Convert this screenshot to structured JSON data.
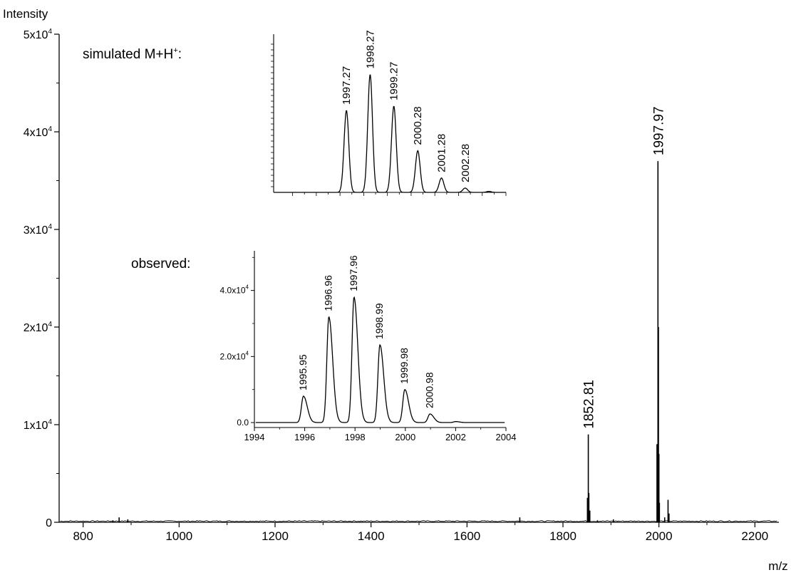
{
  "chart_data": [
    {
      "id": "main",
      "type": "line",
      "ylabel": "Intensity",
      "xlabel": "m/z",
      "xlim": [
        750,
        2250
      ],
      "ylim": [
        0,
        50000
      ],
      "x_ticks": [
        800,
        1000,
        1200,
        1400,
        1600,
        1800,
        2000,
        2200
      ],
      "x_tick_labels": [
        "800",
        "1000",
        "1200",
        "1400",
        "1600",
        "1800",
        "2000",
        "2200"
      ],
      "y_ticks": [
        0,
        10000,
        20000,
        30000,
        40000,
        50000
      ],
      "y_tick_labels": [
        {
          "mantissa": "0",
          "exp": ""
        },
        {
          "mantissa": "1x10",
          "exp": "4"
        },
        {
          "mantissa": "2x10",
          "exp": "4"
        },
        {
          "mantissa": "3x10",
          "exp": "4"
        },
        {
          "mantissa": "4x10",
          "exp": "4"
        },
        {
          "mantissa": "5x10",
          "exp": "4"
        }
      ],
      "peaks": [
        {
          "mz": 862,
          "intensity": 200
        },
        {
          "mz": 875,
          "intensity": 500
        },
        {
          "mz": 893,
          "intensity": 300
        },
        {
          "mz": 1710,
          "intensity": 500
        },
        {
          "mz": 1851,
          "intensity": 2500
        },
        {
          "mz": 1852.81,
          "intensity": 9000
        },
        {
          "mz": 1854,
          "intensity": 3000
        },
        {
          "mz": 1856,
          "intensity": 1200
        },
        {
          "mz": 1872,
          "intensity": 200
        },
        {
          "mz": 1905,
          "intensity": 300
        },
        {
          "mz": 1995.95,
          "intensity": 8000
        },
        {
          "mz": 1997.97,
          "intensity": 37000
        },
        {
          "mz": 1999,
          "intensity": 20000
        },
        {
          "mz": 2000,
          "intensity": 7000
        },
        {
          "mz": 2001,
          "intensity": 2000
        },
        {
          "mz": 2012,
          "intensity": 500
        },
        {
          "mz": 2019,
          "intensity": 2300
        },
        {
          "mz": 2021,
          "intensity": 900
        }
      ],
      "peak_labels": [
        {
          "text": "1852.81",
          "mz": 1852.81,
          "intensity": 9000
        },
        {
          "text": "1997.97",
          "mz": 1997.97,
          "intensity": 37000
        }
      ]
    },
    {
      "id": "simulated",
      "type": "line",
      "title": "simulated M+H",
      "title_sup": "+",
      "title_suffix": ":",
      "xlim": [
        1994.2,
        2004
      ],
      "ylim": [
        0,
        1.1
      ],
      "peaks": [
        {
          "mz": 1997.27,
          "rel": 0.57
        },
        {
          "mz": 1998.27,
          "rel": 0.82
        },
        {
          "mz": 1999.27,
          "rel": 0.6
        },
        {
          "mz": 2000.28,
          "rel": 0.29
        },
        {
          "mz": 2001.28,
          "rel": 0.1
        },
        {
          "mz": 2002.28,
          "rel": 0.03
        },
        {
          "mz": 2003.28,
          "rel": 0.007
        }
      ],
      "peak_labels": [
        {
          "text": "1997.27",
          "mz": 1997.27,
          "rel": 0.57
        },
        {
          "text": "1998.27",
          "mz": 1998.27,
          "rel": 0.82
        },
        {
          "text": "1999.27",
          "mz": 1999.27,
          "rel": 0.6
        },
        {
          "text": "2000.28",
          "mz": 2000.28,
          "rel": 0.29
        },
        {
          "text": "2001.28",
          "mz": 2001.28,
          "rel": 0.1
        },
        {
          "text": "2002.28",
          "mz": 2002.28,
          "rel": 0.03
        }
      ]
    },
    {
      "id": "observed",
      "type": "line",
      "title": "observed:",
      "xlim": [
        1994,
        2004
      ],
      "ylim": [
        -1500,
        52000
      ],
      "x_ticks": [
        1994,
        1996,
        1998,
        2000,
        2002,
        2004
      ],
      "x_tick_labels": [
        "1994",
        "1996",
        "1998",
        "2000",
        "2002",
        "2004"
      ],
      "y_ticks": [
        0,
        20000,
        40000
      ],
      "y_tick_labels": [
        {
          "mantissa": "0.0",
          "exp": ""
        },
        {
          "mantissa": "2.0x10",
          "exp": "4"
        },
        {
          "mantissa": "4.0x10",
          "exp": "4"
        }
      ],
      "peaks": [
        {
          "mz": 1995.95,
          "intensity": 8000
        },
        {
          "mz": 1996.96,
          "intensity": 32000
        },
        {
          "mz": 1997.96,
          "intensity": 38000
        },
        {
          "mz": 1998.99,
          "intensity": 23500
        },
        {
          "mz": 1999.98,
          "intensity": 10000
        },
        {
          "mz": 2000.98,
          "intensity": 2600
        },
        {
          "mz": 2002.0,
          "intensity": 300
        }
      ],
      "peak_labels": [
        {
          "text": "1995.95",
          "mz": 1995.95,
          "intensity": 8000
        },
        {
          "text": "1996.96",
          "mz": 1996.96,
          "intensity": 32000
        },
        {
          "text": "1997.96",
          "mz": 1997.96,
          "intensity": 38000
        },
        {
          "text": "1998.99",
          "mz": 1998.99,
          "intensity": 23500
        },
        {
          "text": "1999.98",
          "mz": 1999.98,
          "intensity": 10000
        },
        {
          "text": "2000.98",
          "mz": 2000.98,
          "intensity": 2600
        }
      ]
    }
  ]
}
